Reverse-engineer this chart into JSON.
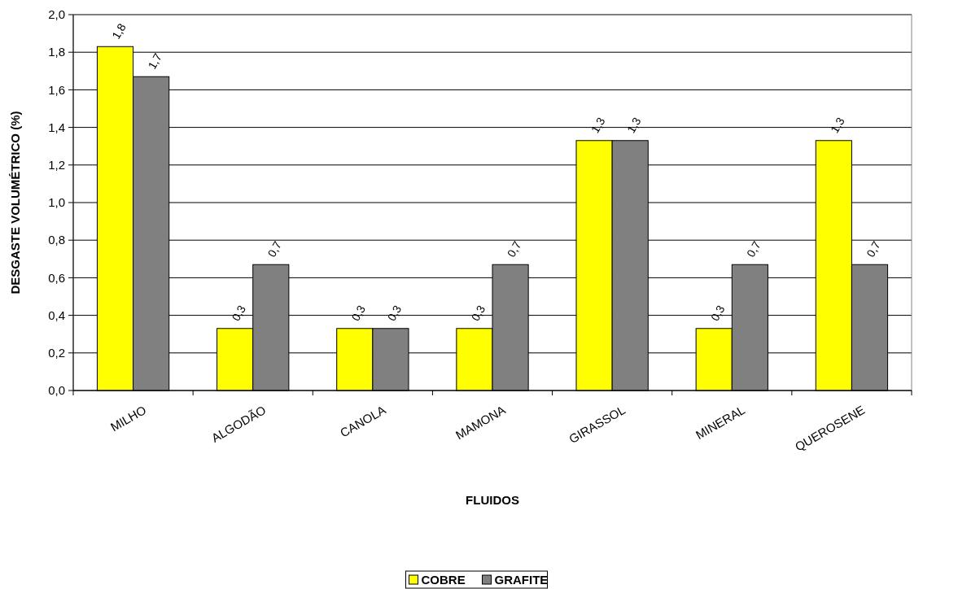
{
  "chart_data": {
    "type": "bar",
    "xlabel": "FLUIDOS",
    "ylabel": "DESGASTE VOLUMÉTRICO (%)",
    "categories": [
      "MILHO",
      "ALGODÃO",
      "CANOLA",
      "MAMONA",
      "GIRASSOL",
      "MINERAL",
      "QUEROSENE"
    ],
    "series": [
      {
        "name": "COBRE",
        "color": "#ffff00",
        "values": [
          1.83,
          0.33,
          0.33,
          0.33,
          1.33,
          0.33,
          1.33
        ],
        "value_labels": [
          "1,8",
          "0,3",
          "0,3",
          "0,3",
          "1,3",
          "0,3",
          "1,3"
        ]
      },
      {
        "name": "GRAFITE",
        "color": "#808080",
        "values": [
          1.67,
          0.67,
          0.33,
          0.67,
          1.33,
          0.67,
          0.67
        ],
        "value_labels": [
          "1,7",
          "0,7",
          "0,3",
          "0,7",
          "1,3",
          "0,7",
          "0,7"
        ]
      }
    ],
    "ylim": [
      0,
      2
    ],
    "yticks": [
      {
        "value": 0,
        "label": "0,0"
      },
      {
        "value": 0.2,
        "label": "0,2"
      },
      {
        "value": 0.4,
        "label": "0,4"
      },
      {
        "value": 0.6,
        "label": "0,6"
      },
      {
        "value": 0.8,
        "label": "0,8"
      },
      {
        "value": 1,
        "label": "1,0"
      },
      {
        "value": 1.2,
        "label": "1,2"
      },
      {
        "value": 1.4,
        "label": "1,4"
      },
      {
        "value": 1.6,
        "label": "1,6"
      },
      {
        "value": 1.8,
        "label": "1,8"
      },
      {
        "value": 2,
        "label": "2,0"
      }
    ],
    "grid": "y",
    "legend": "bottom"
  }
}
